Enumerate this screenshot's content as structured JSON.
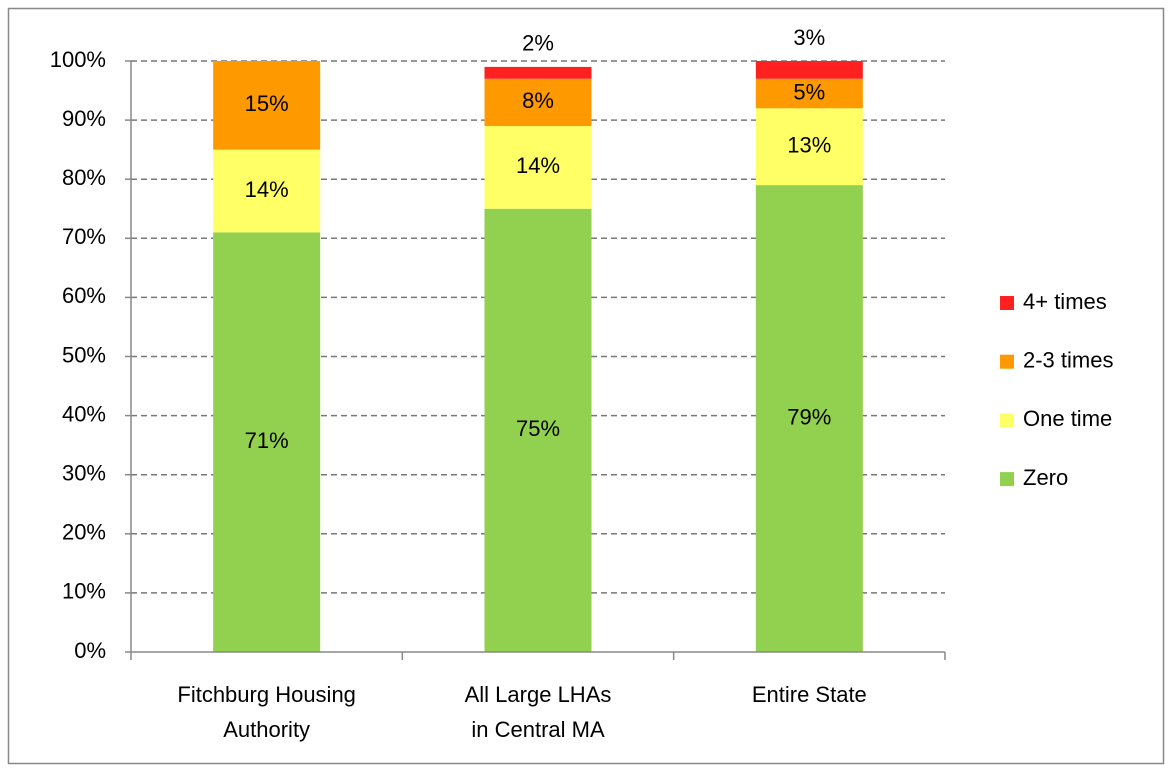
{
  "chart_data": {
    "type": "stacked_bar",
    "categories": [
      "Fitchburg Housing\nAuthority",
      "All Large LHAs\nin Central MA",
      "Entire State"
    ],
    "series": [
      {
        "name": "Zero",
        "color": "#92d050",
        "values": [
          71,
          75,
          79
        ],
        "value_labels": [
          "71%",
          "75%",
          "79%"
        ]
      },
      {
        "name": "One time",
        "color": "#ffff66",
        "values": [
          14,
          14,
          13
        ],
        "value_labels": [
          "14%",
          "14%",
          "13%"
        ]
      },
      {
        "name": "2-3 times",
        "color": "#ff9900",
        "values": [
          15,
          8,
          5
        ],
        "value_labels": [
          "15%",
          "8%",
          "5%"
        ]
      },
      {
        "name": "4+ times",
        "color": "#ff2020",
        "values": [
          0,
          2,
          3
        ],
        "value_labels": [
          null,
          "2%",
          "3%"
        ]
      }
    ],
    "ylim": [
      0,
      100
    ],
    "yticks": [
      {
        "value": 0,
        "label": "0%"
      },
      {
        "value": 10,
        "label": "10%"
      },
      {
        "value": 20,
        "label": "20%"
      },
      {
        "value": 30,
        "label": "30%"
      },
      {
        "value": 40,
        "label": "40%"
      },
      {
        "value": 50,
        "label": "50%"
      },
      {
        "value": 60,
        "label": "60%"
      },
      {
        "value": 70,
        "label": "70%"
      },
      {
        "value": 80,
        "label": "80%"
      },
      {
        "value": 90,
        "label": "90%"
      },
      {
        "value": 100,
        "label": "100%"
      }
    ],
    "grid": true,
    "legend": "right"
  }
}
